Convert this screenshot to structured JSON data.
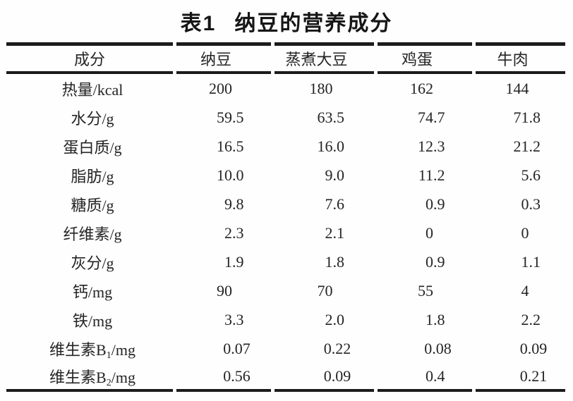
{
  "title": {
    "label": "表1",
    "text": "纳豆的营养成分"
  },
  "colors": {
    "background": "#ffffff",
    "text": "#242424",
    "rule": "#1b1b1b"
  },
  "table": {
    "columns": [
      "成分",
      "纳豆",
      "蒸煮大豆",
      "鸡蛋",
      "牛肉"
    ],
    "rows": [
      {
        "label": "热量/kcal",
        "values": [
          "200",
          "180",
          "162",
          "144"
        ]
      },
      {
        "label": "水分/g",
        "values": [
          "59.5",
          "63.5",
          "74.7",
          "71.8"
        ]
      },
      {
        "label": "蛋白质/g",
        "values": [
          "16.5",
          "16.0",
          "12.3",
          "21.2"
        ]
      },
      {
        "label": "脂肪/g",
        "values": [
          "10.0",
          "9.0",
          "11.2",
          "5.6"
        ]
      },
      {
        "label": "糖质/g",
        "values": [
          "9.8",
          "7.6",
          "0.9",
          "0.3"
        ]
      },
      {
        "label": "纤维素/g",
        "values": [
          "2.3",
          "2.1",
          "0",
          "0"
        ]
      },
      {
        "label": "灰分/g",
        "values": [
          "1.9",
          "1.8",
          "0.9",
          "1.1"
        ]
      },
      {
        "label": "钙/mg",
        "values": [
          "90",
          "70",
          "55",
          "4"
        ]
      },
      {
        "label": "铁/mg",
        "values": [
          "3.3",
          "2.0",
          "1.8",
          "2.2"
        ]
      },
      {
        "label_base": "维生素B",
        "label_sub": "1",
        "label_unit": "/mg",
        "values": [
          "0.07",
          "0.22",
          "0.08",
          "0.09"
        ]
      },
      {
        "label_base": "维生素B",
        "label_sub": "2",
        "label_unit": "/mg",
        "values": [
          "0.56",
          "0.09",
          "0.4",
          "0.21"
        ]
      }
    ]
  }
}
